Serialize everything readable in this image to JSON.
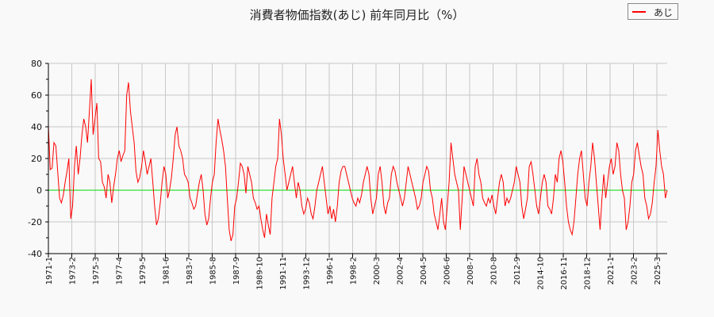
{
  "title": "消費者物価指数(あじ) 前年同月比（%）",
  "legend": {
    "label": "あじ",
    "color": "#ff0000"
  },
  "chart_data": {
    "type": "line",
    "title": "消費者物価指数(あじ) 前年同月比（%）",
    "xlabel": "",
    "ylabel": "",
    "ylim": [
      -40,
      80
    ],
    "yticks": [
      -40,
      -20,
      0,
      20,
      40,
      60,
      80
    ],
    "grid": true,
    "legend_position": "top-right",
    "x_tick_labels": [
      "1971-1",
      "1973-2",
      "1975-3",
      "1977-4",
      "1979-5",
      "1981-6",
      "1983-7",
      "1985-8",
      "1987-9",
      "1989-10",
      "1991-11",
      "1993-12",
      "1996-1",
      "1998-2",
      "2000-3",
      "2002-4",
      "2004-5",
      "2006-6",
      "2008-7",
      "2010-8",
      "2012-9",
      "2014-10",
      "2016-11",
      "2018-12",
      "2021-1",
      "2023-2",
      "2025-3"
    ],
    "x_start": "1971-1",
    "tick_interval_months": 25,
    "reference_line": {
      "y": 0,
      "color": "#00dd00"
    },
    "series": [
      {
        "name": "あじ",
        "color": "#ff0000",
        "x_unit": "months since 1971-1 (approx, every 3 months)",
        "values": [
          41,
          13,
          14,
          30,
          28,
          12,
          -5,
          -8,
          -3,
          5,
          12,
          20,
          -18,
          -10,
          15,
          28,
          10,
          20,
          35,
          45,
          40,
          30,
          50,
          70,
          35,
          45,
          55,
          20,
          18,
          5,
          2,
          -5,
          10,
          5,
          -8,
          2,
          10,
          20,
          25,
          18,
          22,
          25,
          60,
          68,
          50,
          40,
          30,
          12,
          5,
          8,
          15,
          25,
          18,
          10,
          15,
          20,
          5,
          -10,
          -22,
          -18,
          -8,
          5,
          15,
          10,
          -5,
          0,
          8,
          20,
          35,
          40,
          28,
          25,
          20,
          10,
          8,
          5,
          -5,
          -8,
          -12,
          -10,
          -2,
          5,
          10,
          0,
          -15,
          -22,
          -18,
          -5,
          5,
          10,
          30,
          45,
          38,
          32,
          25,
          15,
          -5,
          -25,
          -32,
          -28,
          -10,
          -5,
          5,
          17,
          15,
          10,
          -2,
          15,
          10,
          5,
          -5,
          -8,
          -12,
          -10,
          -18,
          -25,
          -30,
          -15,
          -22,
          -28,
          -5,
          5,
          15,
          20,
          45,
          35,
          20,
          10,
          0,
          5,
          10,
          15,
          5,
          -5,
          5,
          0,
          -10,
          -15,
          -12,
          -5,
          -8,
          -15,
          -18,
          -10,
          0,
          5,
          10,
          15,
          5,
          -5,
          -15,
          -10,
          -18,
          -12,
          -20,
          -10,
          5,
          12,
          15,
          15,
          10,
          5,
          0,
          -5,
          -8,
          -10,
          -5,
          -8,
          -3,
          5,
          10,
          15,
          10,
          -5,
          -15,
          -10,
          -5,
          10,
          15,
          5,
          -10,
          -15,
          -8,
          -5,
          10,
          15,
          12,
          5,
          0,
          -5,
          -10,
          -5,
          5,
          15,
          10,
          5,
          0,
          -5,
          -12,
          -10,
          -5,
          5,
          10,
          15,
          12,
          0,
          -5,
          -15,
          -20,
          -25,
          -15,
          -5,
          -20,
          -25,
          -10,
          5,
          30,
          20,
          10,
          5,
          0,
          -25,
          -5,
          15,
          10,
          5,
          0,
          -5,
          -10,
          15,
          20,
          10,
          5,
          -5,
          -8,
          -10,
          -5,
          -8,
          -3,
          -10,
          -15,
          -5,
          5,
          10,
          5,
          -10,
          -5,
          -8,
          -5,
          0,
          5,
          15,
          10,
          5,
          -10,
          -18,
          -12,
          -5,
          15,
          18,
          10,
          0,
          -10,
          -15,
          -5,
          5,
          10,
          5,
          -10,
          -12,
          -15,
          -5,
          10,
          5,
          20,
          25,
          18,
          5,
          -10,
          -20,
          -25,
          -28,
          -20,
          -5,
          10,
          20,
          25,
          10,
          -5,
          -10,
          5,
          15,
          30,
          20,
          5,
          -10,
          -25,
          -5,
          10,
          -5,
          5,
          15,
          20,
          10,
          15,
          30,
          25,
          10,
          0,
          -5,
          -25,
          -20,
          -10,
          5,
          10,
          25,
          30,
          22,
          15,
          10,
          -5,
          -10,
          -18,
          -15,
          -8,
          5,
          15,
          38,
          25,
          15,
          10,
          -5,
          0
        ]
      }
    ]
  },
  "axes": {
    "y_labels": [
      "80",
      "60",
      "40",
      "20",
      "0",
      "-20",
      "-40"
    ]
  }
}
